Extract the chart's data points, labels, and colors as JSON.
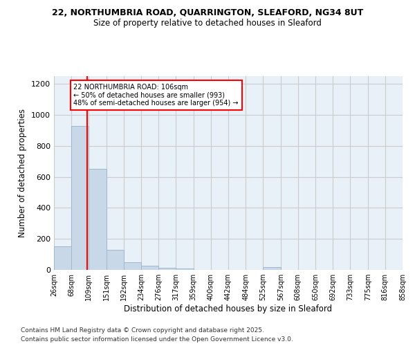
{
  "title_line1": "22, NORTHUMBRIA ROAD, QUARRINGTON, SLEAFORD, NG34 8UT",
  "title_line2": "Size of property relative to detached houses in Sleaford",
  "xlabel": "Distribution of detached houses by size in Sleaford",
  "ylabel": "Number of detached properties",
  "bin_labels": [
    "26sqm",
    "68sqm",
    "109sqm",
    "151sqm",
    "192sqm",
    "234sqm",
    "276sqm",
    "317sqm",
    "359sqm",
    "400sqm",
    "442sqm",
    "484sqm",
    "525sqm",
    "567sqm",
    "608sqm",
    "650sqm",
    "692sqm",
    "733sqm",
    "775sqm",
    "816sqm",
    "858sqm"
  ],
  "bin_edges": [
    26,
    68,
    109,
    151,
    192,
    234,
    276,
    317,
    359,
    400,
    442,
    484,
    525,
    567,
    608,
    650,
    692,
    733,
    775,
    816,
    858
  ],
  "bar_heights": [
    150,
    930,
    650,
    130,
    50,
    25,
    15,
    8,
    0,
    0,
    0,
    0,
    20,
    0,
    0,
    0,
    0,
    0,
    0,
    0
  ],
  "bar_color": "#c8d8e8",
  "bar_edge_color": "#a0b8cc",
  "grid_color": "#cccccc",
  "vline_x": 106,
  "vline_color": "red",
  "annotation_text": "22 NORTHUMBRIA ROAD: 106sqm\n← 50% of detached houses are smaller (993)\n48% of semi-detached houses are larger (954) →",
  "annotation_box_color": "white",
  "annotation_box_edge": "red",
  "footer_line1": "Contains HM Land Registry data © Crown copyright and database right 2025.",
  "footer_line2": "Contains public sector information licensed under the Open Government Licence v3.0.",
  "ylim": [
    0,
    1250
  ],
  "yticks": [
    0,
    200,
    400,
    600,
    800,
    1000,
    1200
  ],
  "bg_color": "#ffffff",
  "plot_bg_color": "#e8f0f8"
}
